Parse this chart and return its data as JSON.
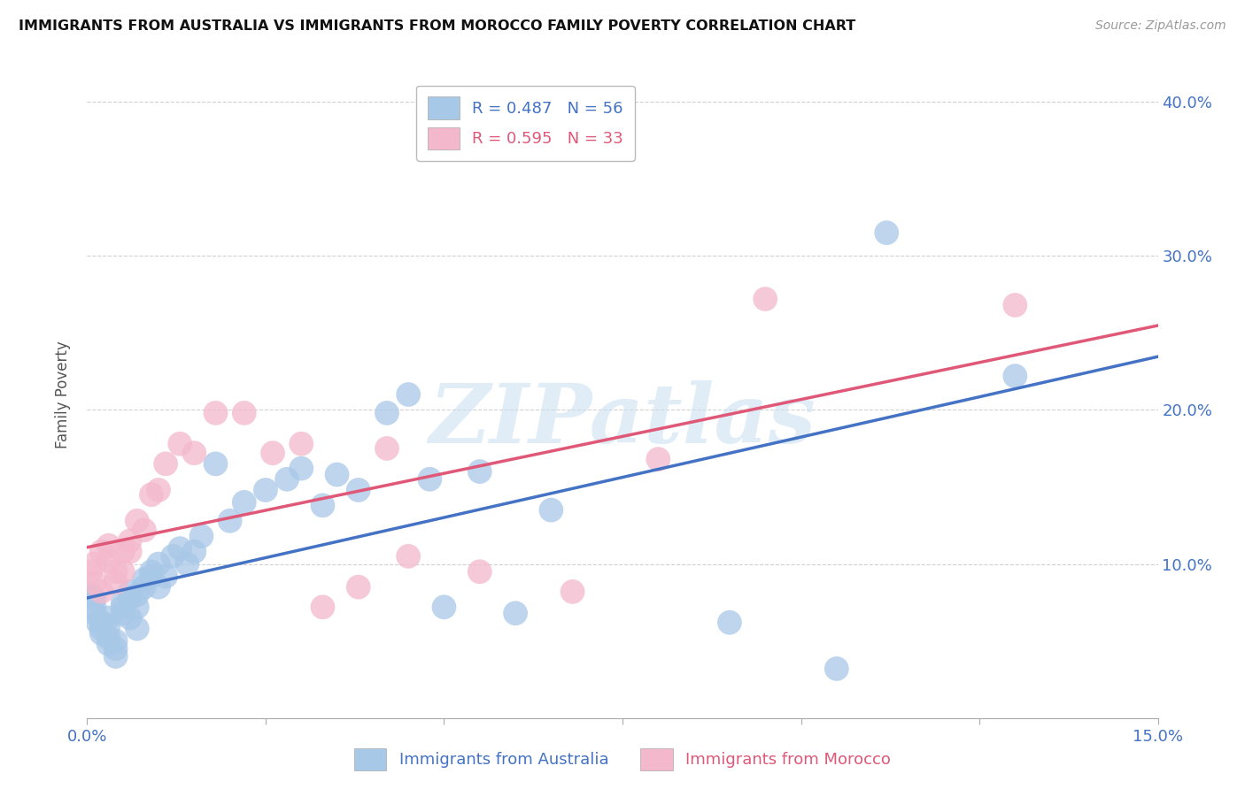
{
  "title": "IMMIGRANTS FROM AUSTRALIA VS IMMIGRANTS FROM MOROCCO FAMILY POVERTY CORRELATION CHART",
  "source": "Source: ZipAtlas.com",
  "ylabel": "Family Poverty",
  "xlim": [
    0.0,
    0.15
  ],
  "ylim": [
    0.0,
    0.42
  ],
  "xtick_positions": [
    0.0,
    0.025,
    0.05,
    0.075,
    0.1,
    0.125,
    0.15
  ],
  "xtick_labels": [
    "0.0%",
    "",
    "",
    "",
    "",
    "",
    "15.0%"
  ],
  "ytick_positions": [
    0.1,
    0.2,
    0.3,
    0.4
  ],
  "ytick_labels": [
    "10.0%",
    "20.0%",
    "30.0%",
    "40.0%"
  ],
  "australia_color": "#a8c8e8",
  "australia_line_color": "#4472c4",
  "morocco_color": "#f4b8cc",
  "morocco_line_color": "#e05878",
  "australia_R": 0.487,
  "australia_N": 56,
  "morocco_R": 0.595,
  "morocco_N": 33,
  "watermark": "ZIPatlas",
  "australia_x": [
    0.0005,
    0.001,
    0.001,
    0.001,
    0.0015,
    0.002,
    0.002,
    0.002,
    0.003,
    0.003,
    0.003,
    0.003,
    0.004,
    0.004,
    0.004,
    0.005,
    0.005,
    0.005,
    0.006,
    0.006,
    0.006,
    0.007,
    0.007,
    0.007,
    0.008,
    0.008,
    0.009,
    0.009,
    0.01,
    0.01,
    0.011,
    0.012,
    0.013,
    0.014,
    0.015,
    0.016,
    0.018,
    0.02,
    0.022,
    0.025,
    0.028,
    0.03,
    0.033,
    0.035,
    0.038,
    0.042,
    0.045,
    0.048,
    0.05,
    0.055,
    0.06,
    0.065,
    0.09,
    0.105,
    0.112,
    0.13
  ],
  "australia_y": [
    0.08,
    0.068,
    0.072,
    0.078,
    0.062,
    0.058,
    0.055,
    0.062,
    0.048,
    0.052,
    0.065,
    0.06,
    0.05,
    0.045,
    0.04,
    0.068,
    0.075,
    0.072,
    0.078,
    0.082,
    0.065,
    0.072,
    0.08,
    0.058,
    0.09,
    0.085,
    0.095,
    0.092,
    0.1,
    0.085,
    0.092,
    0.105,
    0.11,
    0.1,
    0.108,
    0.118,
    0.165,
    0.128,
    0.14,
    0.148,
    0.155,
    0.162,
    0.138,
    0.158,
    0.148,
    0.198,
    0.21,
    0.155,
    0.072,
    0.16,
    0.068,
    0.135,
    0.062,
    0.032,
    0.315,
    0.222
  ],
  "morocco_x": [
    0.0005,
    0.001,
    0.001,
    0.002,
    0.002,
    0.003,
    0.003,
    0.004,
    0.004,
    0.005,
    0.005,
    0.006,
    0.006,
    0.007,
    0.008,
    0.009,
    0.01,
    0.011,
    0.013,
    0.015,
    0.018,
    0.022,
    0.026,
    0.03,
    0.033,
    0.038,
    0.042,
    0.045,
    0.055,
    0.068,
    0.08,
    0.095,
    0.13
  ],
  "morocco_y": [
    0.095,
    0.088,
    0.1,
    0.082,
    0.108,
    0.102,
    0.112,
    0.095,
    0.088,
    0.108,
    0.095,
    0.115,
    0.108,
    0.128,
    0.122,
    0.145,
    0.148,
    0.165,
    0.178,
    0.172,
    0.198,
    0.198,
    0.172,
    0.178,
    0.072,
    0.085,
    0.175,
    0.105,
    0.095,
    0.082,
    0.168,
    0.272,
    0.268
  ]
}
